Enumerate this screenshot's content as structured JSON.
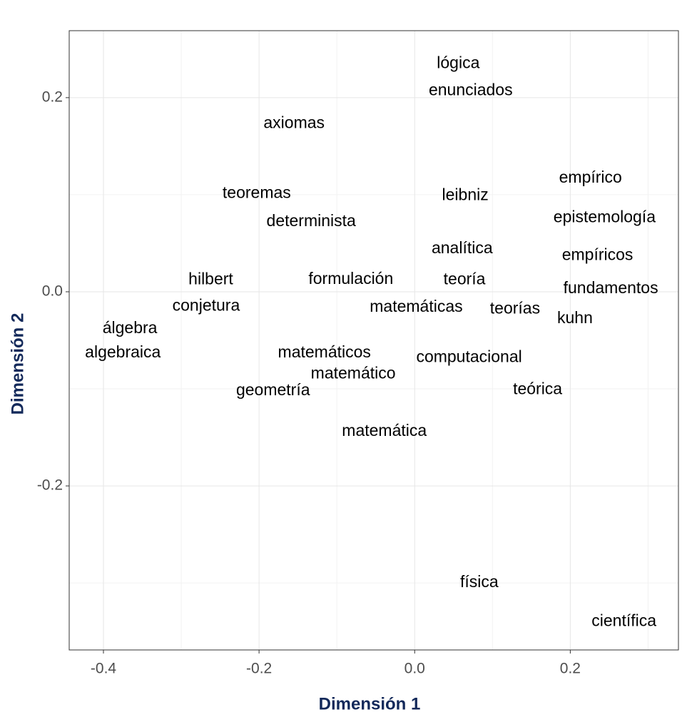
{
  "chart_data": {
    "type": "scatter",
    "x_label": "Dimensión 1",
    "y_label": "Dimensión 2",
    "labels": [
      "lógica",
      "enunciados",
      "axiomas",
      "empírico",
      "teoremas",
      "leibniz",
      "epistemología",
      "determinista",
      "analítica",
      "empíricos",
      "hilbert",
      "formulación",
      "teoría",
      "fundamentos",
      "conjetura",
      "matemáticas",
      "teorías",
      "kuhn",
      "álgebra",
      "algebraica",
      "matemáticos",
      "computacional",
      "matemático",
      "teórica",
      "geometría",
      "matemática",
      "física",
      "científica"
    ],
    "x": [
      0.056,
      0.072,
      -0.155,
      0.226,
      -0.203,
      0.065,
      0.244,
      -0.133,
      0.061,
      0.235,
      -0.262,
      -0.082,
      0.064,
      0.252,
      -0.268,
      0.002,
      0.129,
      0.206,
      -0.366,
      -0.375,
      -0.116,
      0.07,
      -0.079,
      0.158,
      -0.182,
      -0.039,
      0.083,
      0.269
    ],
    "values": [
      0.235,
      0.207,
      0.173,
      0.117,
      0.101,
      0.099,
      0.076,
      0.072,
      0.044,
      0.037,
      0.012,
      0.0125,
      0.012,
      0.003,
      -0.015,
      -0.016,
      -0.018,
      -0.028,
      -0.038,
      -0.063,
      -0.063,
      -0.068,
      -0.085,
      -0.101,
      -0.102,
      -0.144,
      -0.3,
      -0.34
    ],
    "color": "#000000",
    "xlim": [
      -0.444,
      0.339
    ],
    "ylim": [
      -0.369,
      0.269
    ],
    "xticks": [
      -0.4,
      -0.2,
      {
        "value": 0,
        "label": "0.0"
      },
      0.2
    ],
    "yticks": [
      -0.2,
      {
        "value": 0,
        "label": "0.0"
      },
      0.2
    ],
    "x_minor_grid": [
      -0.3,
      -0.1,
      0.1,
      0.3
    ],
    "y_minor_grid": [
      -0.3,
      -0.1,
      0.1
    ],
    "grid": true
  }
}
